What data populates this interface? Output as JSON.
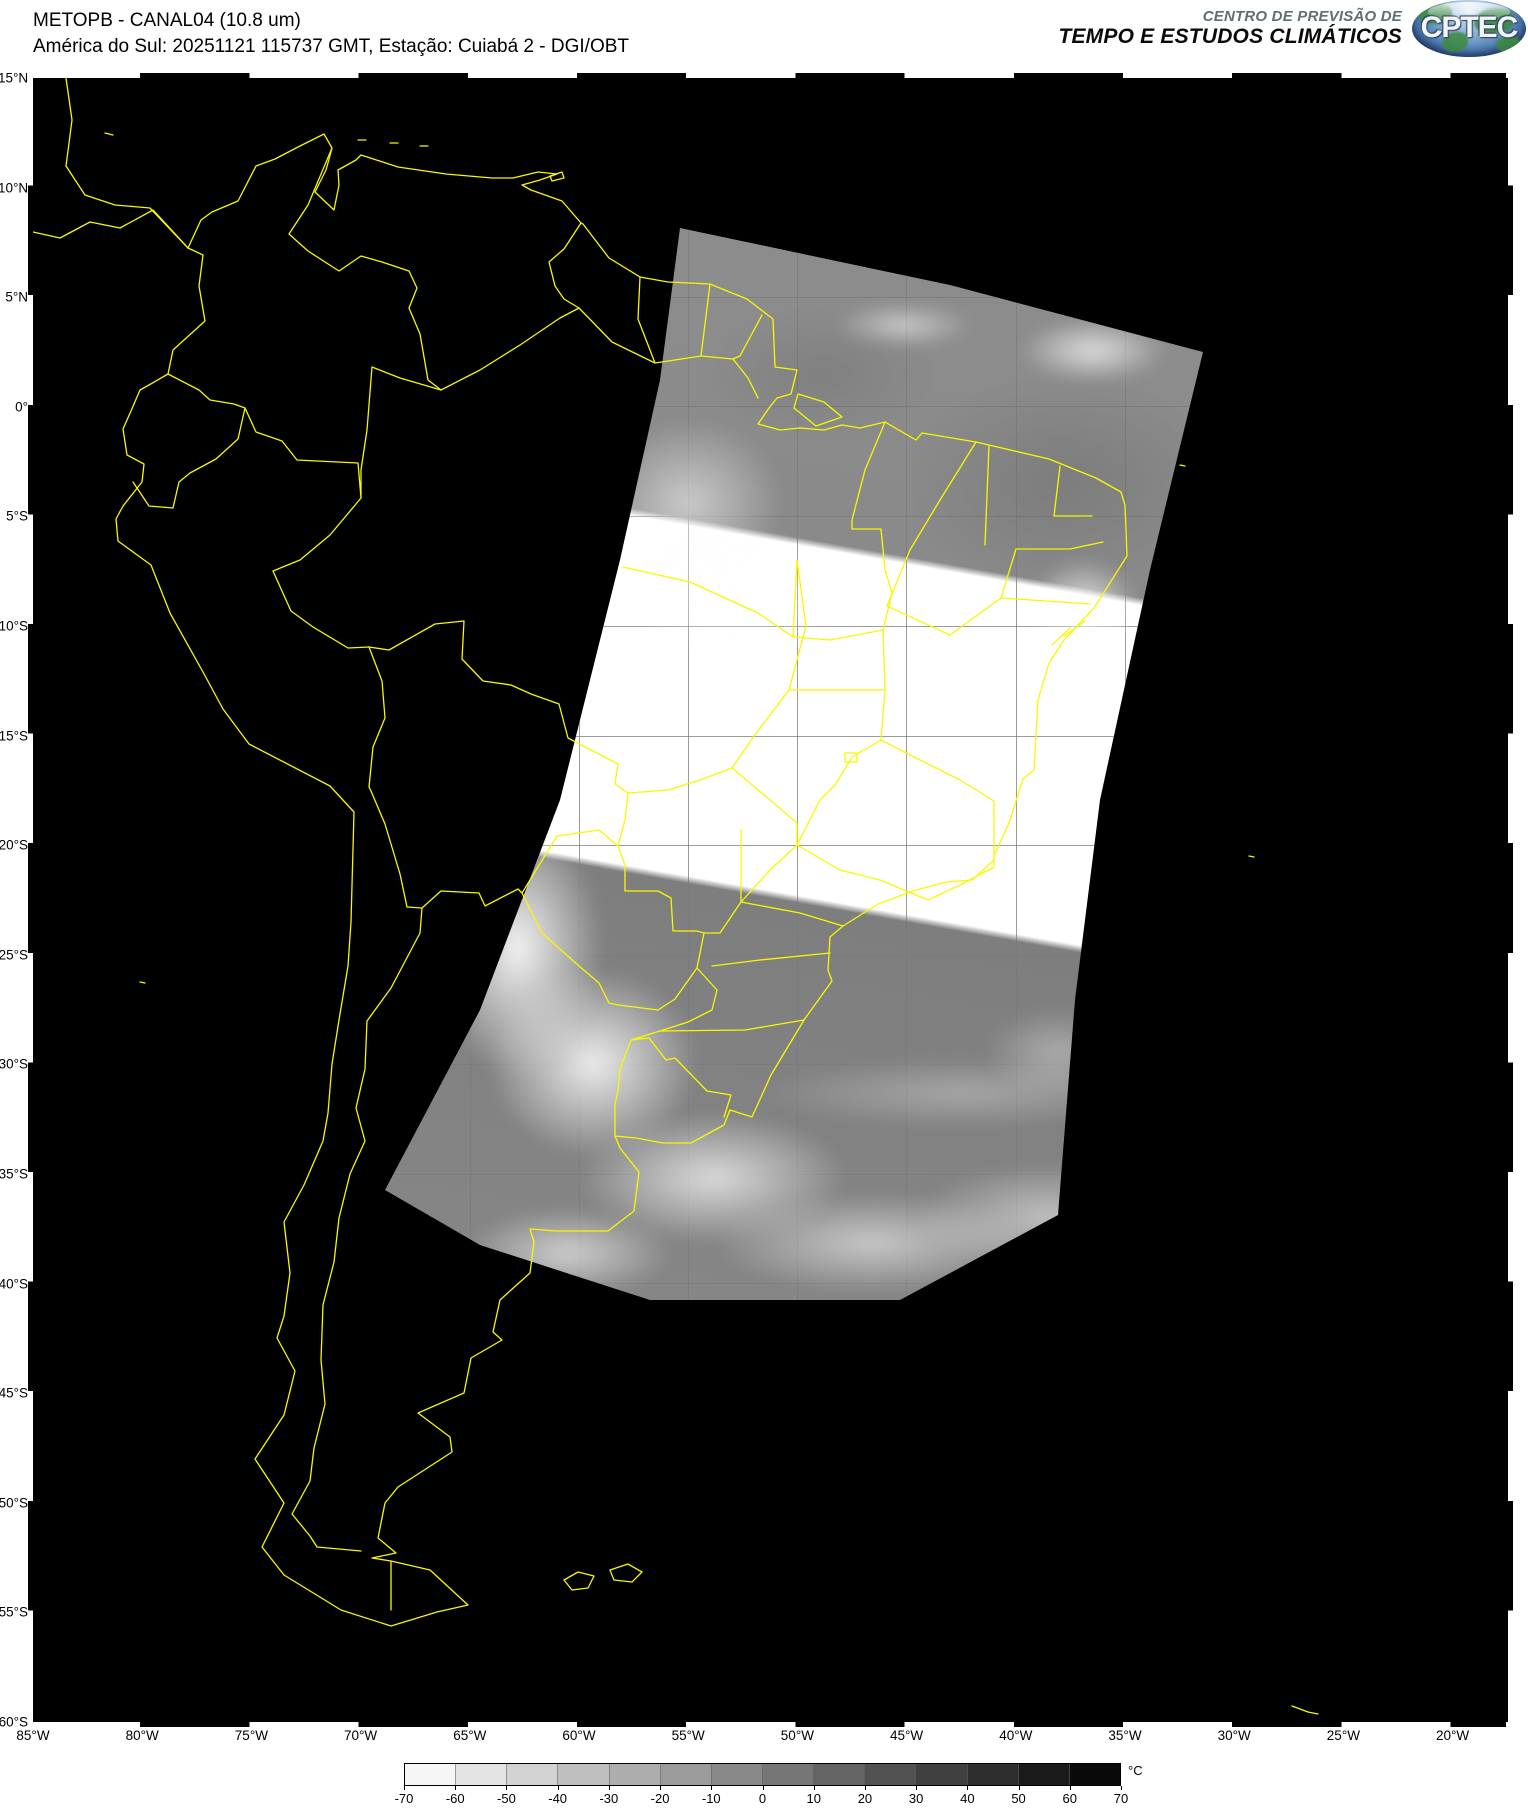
{
  "header": {
    "title_line1": "METOPB - CANAL04 (10.8 um)",
    "title_line2": "América do Sul: 20251121 115737 GMT, Estação: Cuiabá 2 - DGI/OBT",
    "org_line1": "CENTRO DE PREVISÃO DE",
    "org_line2": "TEMPO E ESTUDOS CLIMÁTICOS",
    "logo_text": "CPTEC"
  },
  "map": {
    "lat_labels": [
      "15°N",
      "10°N",
      "5°N",
      "0°",
      "5°S",
      "10°S",
      "15°S",
      "20°S",
      "25°S",
      "30°S",
      "35°S",
      "40°S",
      "45°S",
      "50°S",
      "55°S",
      "60°S"
    ],
    "lon_labels": [
      "85°W",
      "80°W",
      "75°W",
      "70°W",
      "65°W",
      "60°W",
      "55°W",
      "50°W",
      "45°W",
      "40°W",
      "35°W",
      "30°W",
      "25°W",
      "20°W"
    ],
    "coastline_color": "#f8f800",
    "background_color": "#000000",
    "graticule_color": "#7a7a7a"
  },
  "colorbar": {
    "unit": "°C",
    "tick_labels": [
      "-70",
      "-60",
      "-50",
      "-40",
      "-30",
      "-20",
      "-10",
      "0",
      "10",
      "20",
      "30",
      "40",
      "50",
      "60",
      "70"
    ],
    "palette": [
      "#f6f6f6",
      "#e4e4e4",
      "#d2d2d2",
      "#bfbfbf",
      "#adadad",
      "#9b9b9b",
      "#898989",
      "#767676",
      "#646464",
      "#525252",
      "#404040",
      "#2e2e2e",
      "#1b1b1b",
      "#090909"
    ]
  }
}
